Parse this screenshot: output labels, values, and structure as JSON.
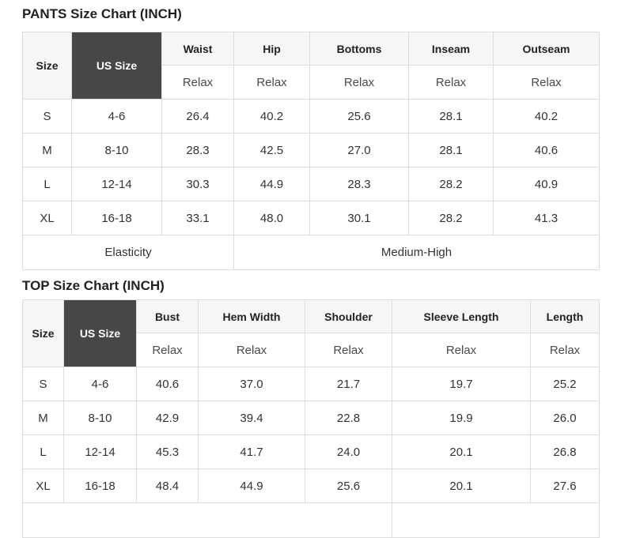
{
  "colors": {
    "us_size_header_bg": "#474747",
    "us_size_header_text": "#ffffff",
    "column_header_bg": "#f6f6f6",
    "border": "#dddddd",
    "title_text": "#222222",
    "body_text": "#333333"
  },
  "chart_data": [
    {
      "type": "table",
      "title": "PANTS Size Chart (INCH)",
      "columns": [
        "Size",
        "US Size",
        "Waist",
        "Hip",
        "Bottoms",
        "Inseam",
        "Outseam"
      ],
      "fit_row_label": "Relax",
      "rows": [
        [
          "S",
          "4-6",
          "26.4",
          "40.2",
          "25.6",
          "28.1",
          "40.2"
        ],
        [
          "M",
          "8-10",
          "28.3",
          "42.5",
          "27.0",
          "28.1",
          "40.6"
        ],
        [
          "L",
          "12-14",
          "30.3",
          "44.9",
          "28.3",
          "28.2",
          "40.9"
        ],
        [
          "XL",
          "16-18",
          "33.1",
          "48.0",
          "30.1",
          "28.2",
          "41.3"
        ]
      ],
      "footer": {
        "label": "Elasticity",
        "value": "Medium-High"
      }
    },
    {
      "type": "table",
      "title": "TOP Size Chart (INCH)",
      "columns": [
        "Size",
        "US Size",
        "Bust",
        "Hem Width",
        "Shoulder",
        "Sleeve Length",
        "Length"
      ],
      "fit_row_label": "Relax",
      "rows": [
        [
          "S",
          "4-6",
          "40.6",
          "37.0",
          "21.7",
          "19.7",
          "25.2"
        ],
        [
          "M",
          "8-10",
          "42.9",
          "39.4",
          "22.8",
          "19.9",
          "26.0"
        ],
        [
          "L",
          "12-14",
          "45.3",
          "41.7",
          "24.0",
          "20.1",
          "26.8"
        ],
        [
          "XL",
          "16-18",
          "48.4",
          "44.9",
          "25.6",
          "20.1",
          "27.6"
        ]
      ],
      "footer": null,
      "truncated_footer_row_visible": true
    }
  ]
}
